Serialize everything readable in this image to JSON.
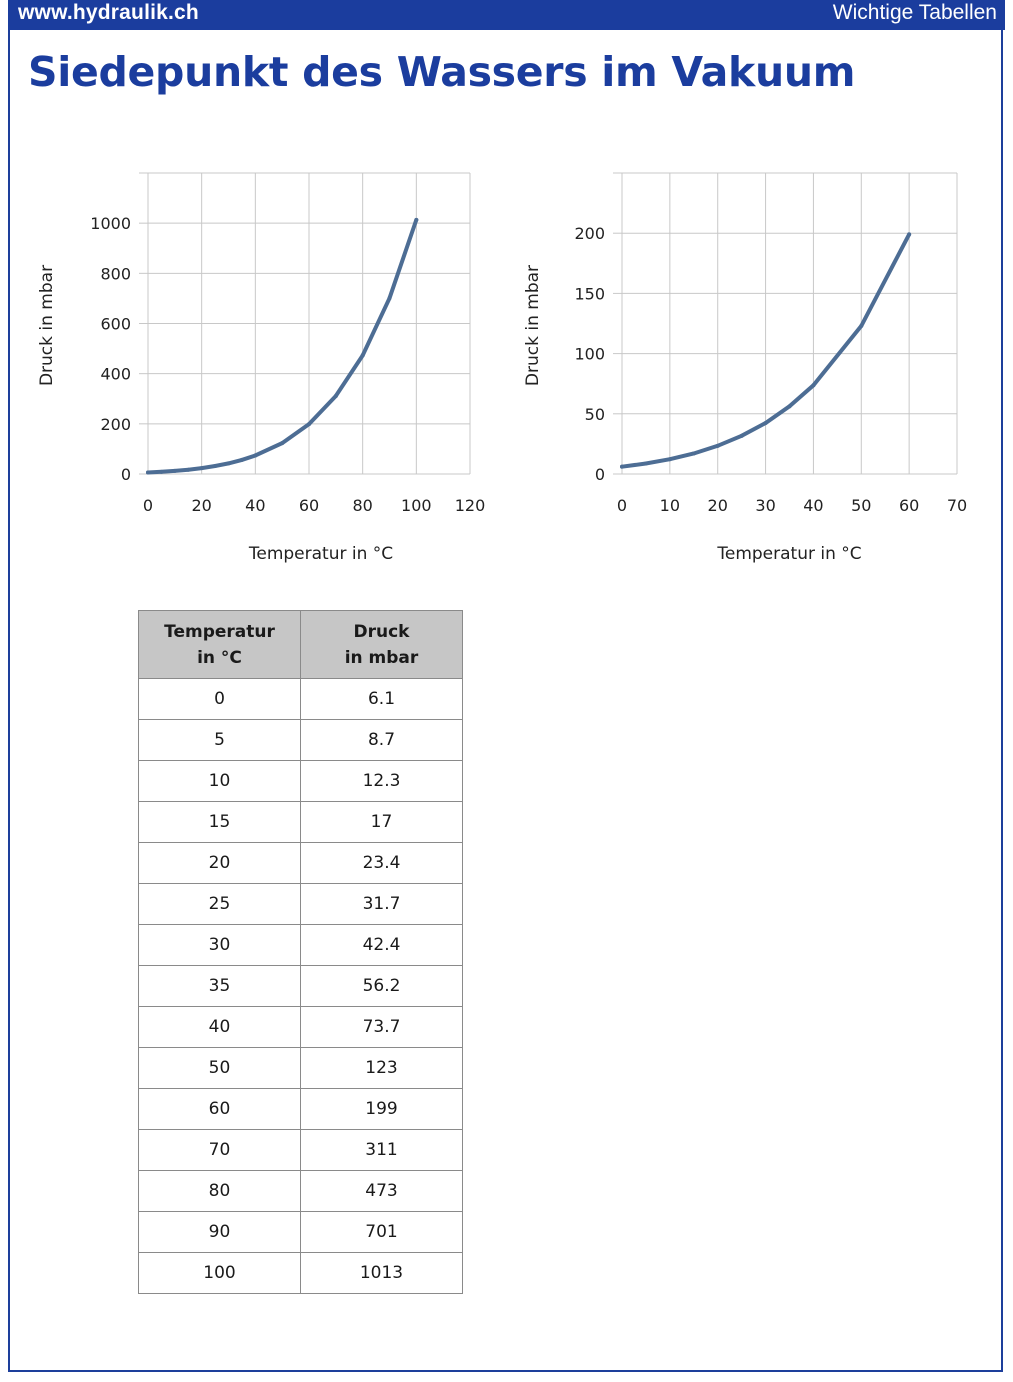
{
  "header": {
    "site": "www.hydraulik.ch",
    "section": "Wichtige Tabellen"
  },
  "page_title": "Siedepunkt des Wassers im Vakuum",
  "chart_data": [
    {
      "type": "line",
      "title": "",
      "xlabel": "Temperatur in °C",
      "ylabel": "Druck in mbar",
      "xlim": [
        0,
        120
      ],
      "ylim": [
        0,
        1200
      ],
      "xticks": [
        0,
        20,
        40,
        60,
        80,
        100,
        120
      ],
      "yticks": [
        0,
        200,
        400,
        600,
        800,
        1000
      ],
      "grid": true,
      "color": "#4d6d94",
      "x": [
        0,
        5,
        10,
        15,
        20,
        25,
        30,
        35,
        40,
        50,
        60,
        70,
        80,
        90,
        100
      ],
      "values": [
        6.1,
        8.7,
        12.3,
        17,
        23.4,
        31.7,
        42.4,
        56.2,
        73.7,
        123,
        199,
        311,
        473,
        701,
        1013
      ]
    },
    {
      "type": "line",
      "title": "",
      "xlabel": "Temperatur in °C",
      "ylabel": "Druck in mbar",
      "xlim": [
        0,
        70
      ],
      "ylim": [
        0,
        250
      ],
      "xticks": [
        0,
        10,
        20,
        30,
        40,
        50,
        60,
        70
      ],
      "yticks": [
        0,
        50,
        100,
        150,
        200
      ],
      "grid": true,
      "color": "#4d6d94",
      "x": [
        0,
        5,
        10,
        15,
        20,
        25,
        30,
        35,
        40,
        50,
        60
      ],
      "values": [
        6.1,
        8.7,
        12.3,
        17,
        23.4,
        31.7,
        42.4,
        56.2,
        73.7,
        123,
        199
      ]
    }
  ],
  "table": {
    "headers": [
      [
        "Temperatur",
        "in °C"
      ],
      [
        "Druck",
        "in mbar"
      ]
    ],
    "rows": [
      [
        "0",
        "6.1"
      ],
      [
        "5",
        "8.7"
      ],
      [
        "10",
        "12.3"
      ],
      [
        "15",
        "17"
      ],
      [
        "20",
        "23.4"
      ],
      [
        "25",
        "31.7"
      ],
      [
        "30",
        "42.4"
      ],
      [
        "35",
        "56.2"
      ],
      [
        "40",
        "73.7"
      ],
      [
        "50",
        "123"
      ],
      [
        "60",
        "199"
      ],
      [
        "70",
        "311"
      ],
      [
        "80",
        "473"
      ],
      [
        "90",
        "701"
      ],
      [
        "100",
        "1013"
      ]
    ]
  }
}
